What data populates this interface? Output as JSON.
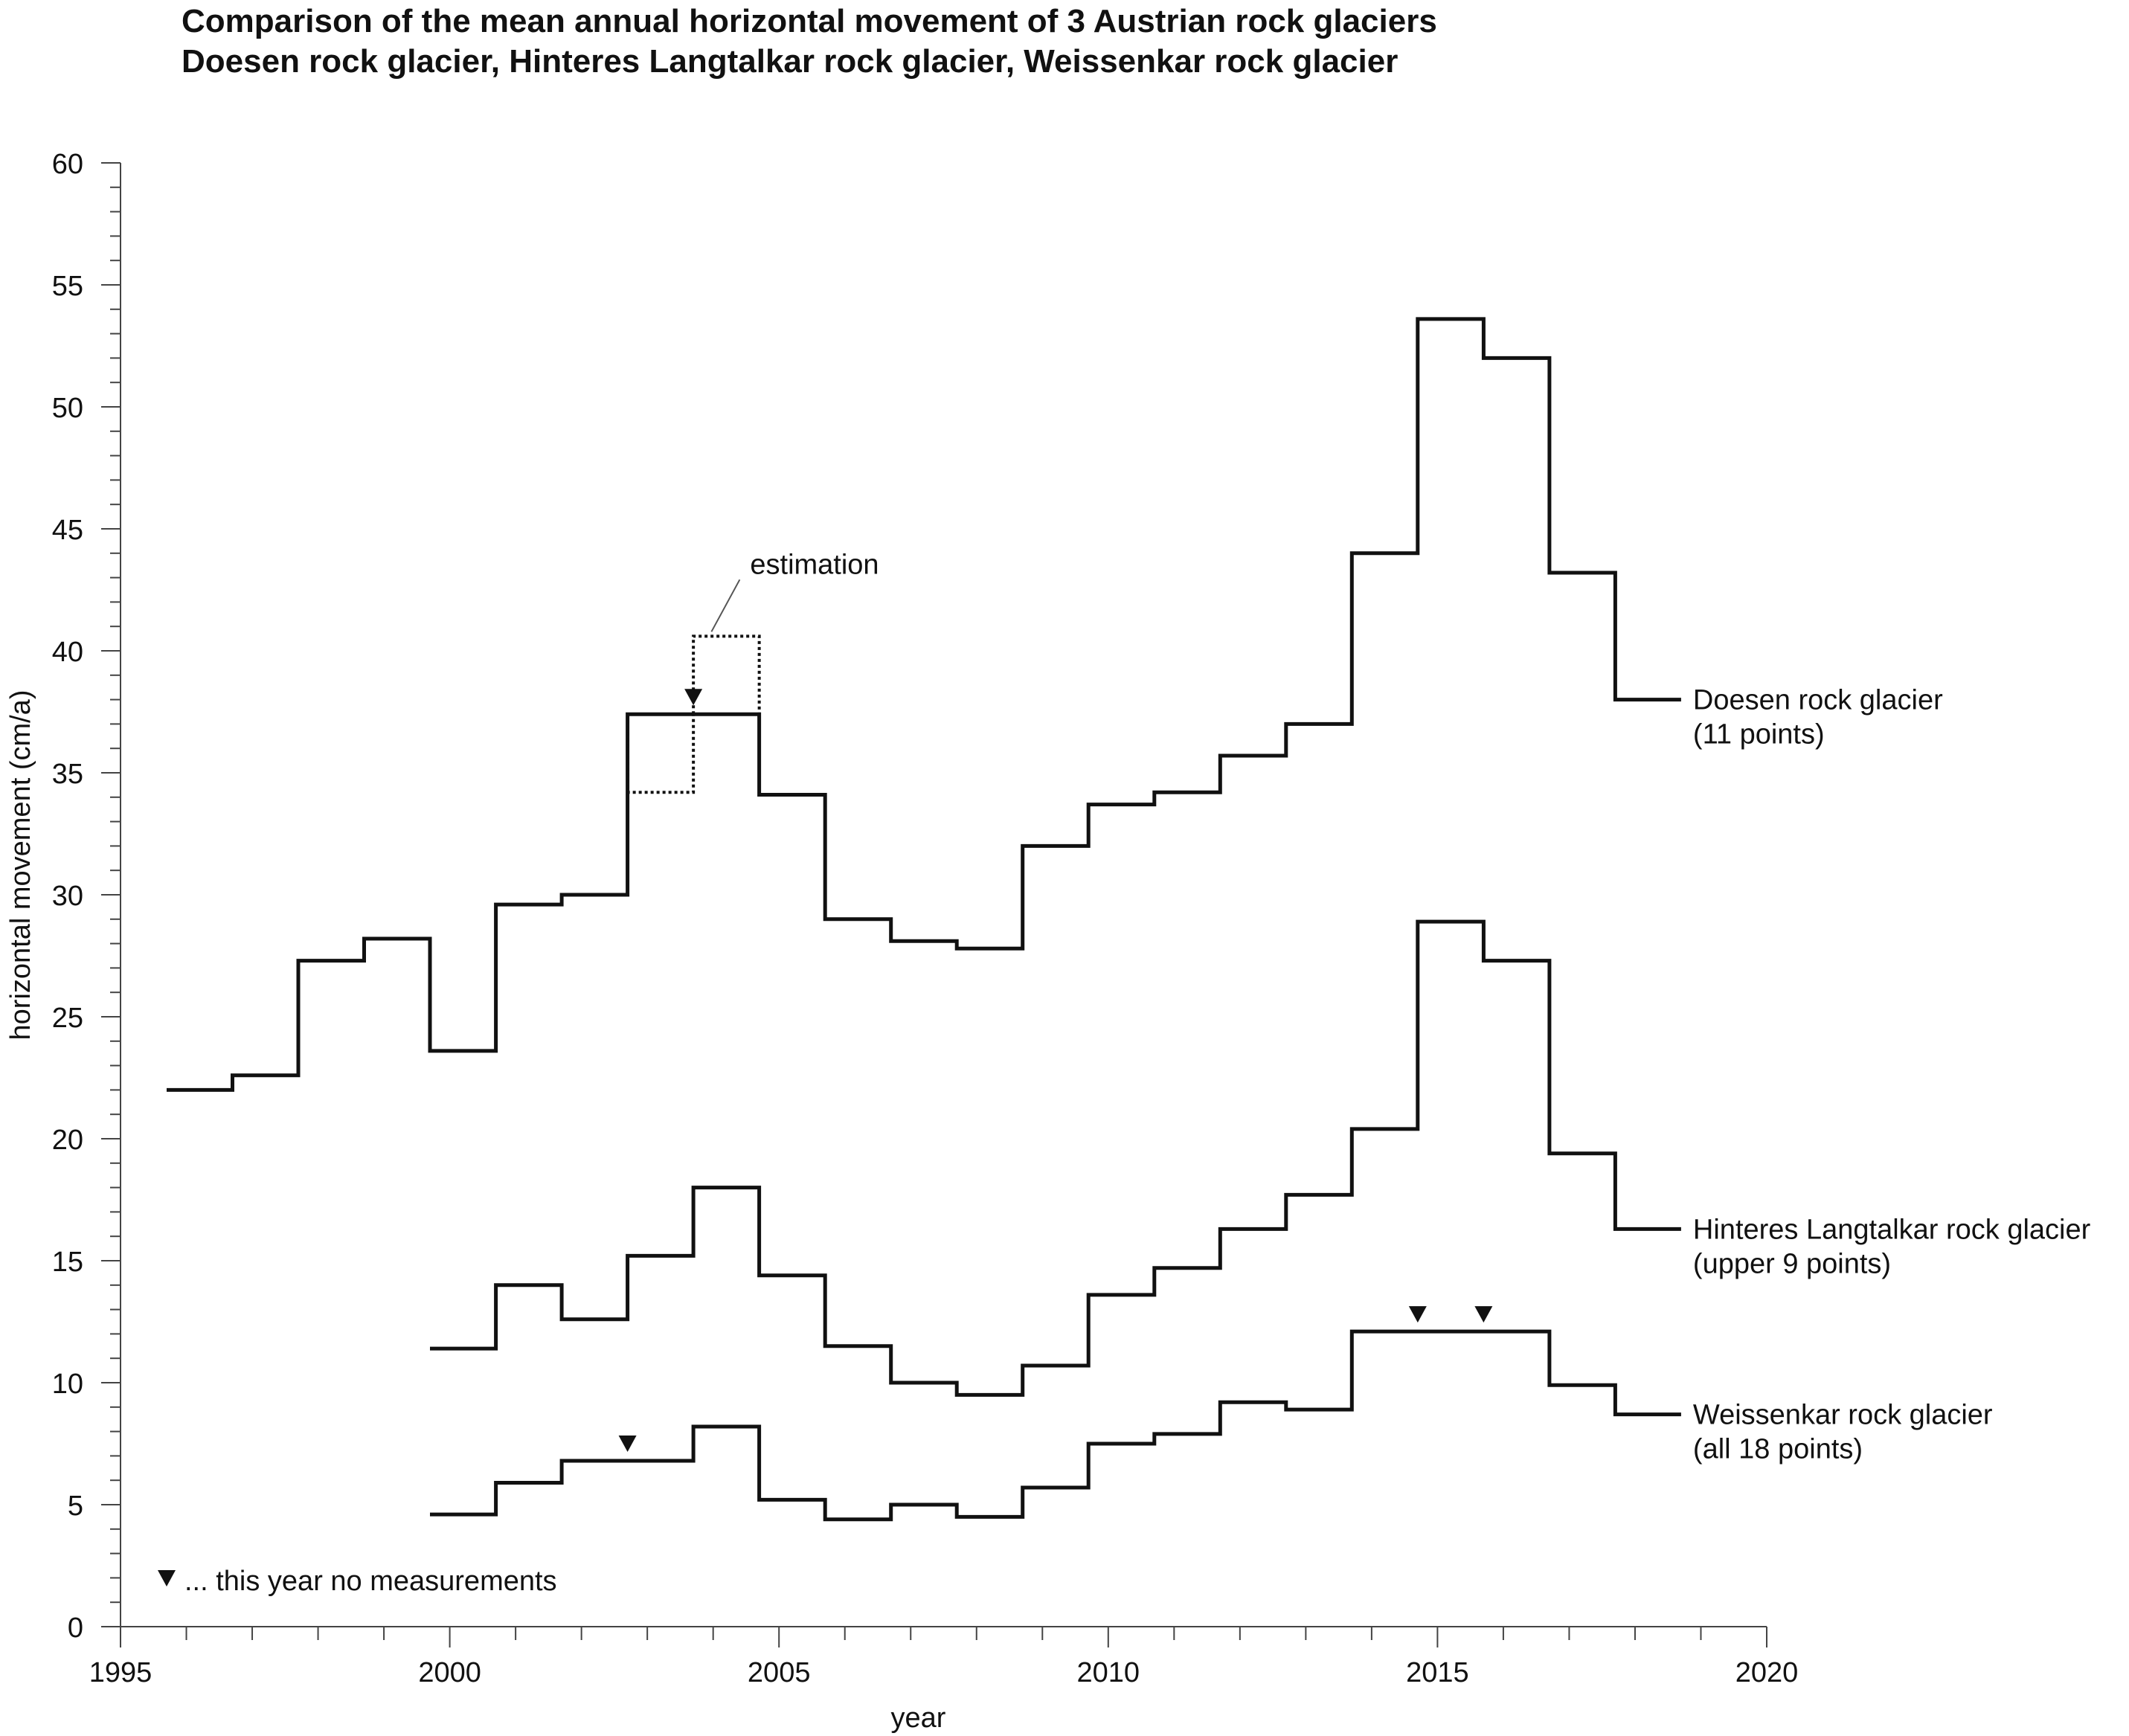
{
  "title_line1": "Comparison of the mean annual horizontal movement of 3 Austrian rock glaciers",
  "title_line2": "Doesen rock glacier, Hinteres Langtalkar rock glacier, Weissenkar rock glacier",
  "chart_data": {
    "type": "line",
    "step": true,
    "xlabel": "year",
    "ylabel": "horizontal movement (cm/a)",
    "xlim": [
      1995,
      2020
    ],
    "ylim": [
      0,
      60
    ],
    "x_ticks": [
      1995,
      2000,
      2005,
      2010,
      2015,
      2020
    ],
    "y_ticks": [
      0,
      5,
      10,
      15,
      20,
      25,
      30,
      35,
      40,
      45,
      50,
      55,
      60
    ],
    "grid": false,
    "series": [
      {
        "name": "Doesen rock glacier",
        "label_line1": "Doesen rock glacier",
        "label_line2": "(11 points)",
        "start_year": 1995.7,
        "values": [
          22.0,
          22.6,
          27.3,
          28.2,
          23.6,
          29.6,
          30.0,
          37.4,
          37.4,
          34.1,
          29.0,
          28.1,
          27.8,
          32.0,
          33.7,
          34.2,
          35.7,
          37.0,
          44.0,
          53.6,
          52.0,
          43.2,
          38.0
        ]
      },
      {
        "name": "Hinteres Langtalkar rock glacier",
        "label_line1": "Hinteres Langtalkar rock glacier",
        "label_line2": "(upper 9 points)",
        "start_year": 1999.7,
        "values": [
          11.4,
          14.0,
          12.6,
          15.2,
          18.0,
          14.4,
          11.5,
          10.0,
          9.5,
          10.7,
          13.6,
          14.7,
          16.3,
          17.7,
          20.4,
          28.9,
          27.3,
          19.4,
          16.3
        ]
      },
      {
        "name": "Weissenkar rock glacier",
        "label_line1": "Weissenkar rock glacier",
        "label_line2": "(all 18 points)",
        "start_year": 1999.7,
        "values": [
          4.6,
          5.9,
          6.8,
          6.8,
          8.2,
          5.2,
          4.4,
          5.0,
          4.5,
          5.7,
          7.5,
          7.9,
          9.2,
          8.9,
          12.1,
          12.1,
          12.1,
          9.9,
          8.7
        ]
      }
    ],
    "estimation": {
      "label": "estimation",
      "segments": [
        {
          "x0": 2002.7,
          "x1": 2003.7,
          "y": 34.2
        },
        {
          "x0": 2003.7,
          "x1": 2004.7,
          "y": 40.6
        }
      ]
    },
    "no_measurement_markers": [
      {
        "x": 2003.7,
        "y": 37.4
      },
      {
        "x": 2002.7,
        "y": 6.8
      },
      {
        "x": 2014.7,
        "y": 12.1
      },
      {
        "x": 2015.7,
        "y": 12.1
      }
    ],
    "legend_note": "... this year no measurements"
  }
}
